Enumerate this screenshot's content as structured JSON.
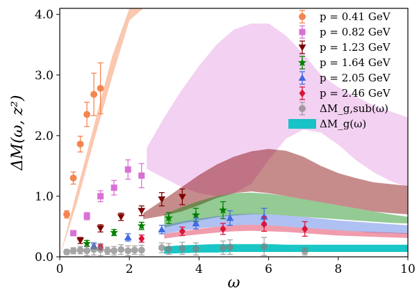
{
  "chart_data": {
    "type": "scatter",
    "xlabel": "ω",
    "ylabel": "ΔM(ω, z²)",
    "xlim": [
      0,
      10
    ],
    "ylim": [
      0,
      4.1
    ],
    "xticks": [
      "0",
      "2",
      "4",
      "6",
      "8",
      "10"
    ],
    "yticks": [
      "0.0",
      "1.0",
      "2.0",
      "3.0",
      "4.0"
    ],
    "legend_position": "top-right",
    "legend": [
      {
        "label": "p = 0.41 GeV",
        "marker": "circle",
        "color": "#f58450"
      },
      {
        "label": "p = 0.82 GeV",
        "marker": "square",
        "color": "#da70d6"
      },
      {
        "label": "p = 1.23 GeV",
        "marker": "triangle-down",
        "color": "#800000"
      },
      {
        "label": "p = 1.64 GeV",
        "marker": "star",
        "color": "#008000"
      },
      {
        "label": "p = 2.05 GeV",
        "marker": "triangle-up",
        "color": "#4169e1"
      },
      {
        "label": "p = 2.46 GeV",
        "marker": "diamond",
        "color": "#dc143c"
      },
      {
        "label": "ΔM_g,sub(ω)",
        "marker": "circle",
        "color": "#808080"
      },
      {
        "label": "ΔM_g(ω)",
        "marker": "band",
        "color": "#00c0c0"
      }
    ],
    "bands": [
      {
        "name": "p = 0.41 GeV",
        "color": "#f58450",
        "opacity": 0.45,
        "x": [
          0,
          0.5,
          1.0,
          1.5,
          2.0,
          2.4
        ],
        "lower": [
          0,
          0.9,
          1.95,
          2.95,
          3.9,
          4.1
        ],
        "upper": [
          0,
          1.1,
          2.2,
          3.3,
          4.1,
          4.1
        ]
      },
      {
        "name": "p = 0.82 GeV",
        "color": "#da70d6",
        "opacity": 0.32,
        "x": [
          2.5,
          3,
          3.5,
          4,
          4.5,
          5,
          5.5,
          6,
          6.5,
          7,
          7.5,
          8,
          8.5,
          9,
          9.5,
          10
        ],
        "lower": [
          1.45,
          1.3,
          1.15,
          1.05,
          1.0,
          1.05,
          1.2,
          1.6,
          1.95,
          2.1,
          2.05,
          1.85,
          1.6,
          1.4,
          1.25,
          1.15
        ],
        "upper": [
          1.8,
          2.3,
          2.75,
          3.15,
          3.5,
          3.75,
          3.85,
          3.85,
          3.65,
          3.35,
          3.0,
          2.8,
          2.65,
          2.5,
          2.4,
          2.3
        ]
      },
      {
        "name": "p = 1.23 GeV",
        "color": "#800000",
        "opacity": 0.45,
        "x": [
          2.4,
          3,
          3.5,
          4,
          4.5,
          5,
          5.5,
          6,
          6.5,
          7,
          7.5,
          8,
          8.5,
          9,
          9.5,
          10
        ],
        "lower": [
          0.62,
          0.68,
          0.75,
          0.85,
          0.97,
          1.05,
          1.08,
          1.05,
          1.0,
          0.95,
          0.9,
          0.85,
          0.8,
          0.75,
          0.72,
          0.7
        ],
        "upper": [
          0.72,
          0.95,
          1.15,
          1.35,
          1.52,
          1.65,
          1.74,
          1.78,
          1.75,
          1.65,
          1.5,
          1.38,
          1.3,
          1.23,
          1.2,
          1.17
        ]
      },
      {
        "name": "p = 1.64 GeV",
        "color": "#008000",
        "opacity": 0.42,
        "x": [
          3,
          3.5,
          4,
          4.5,
          5,
          5.5,
          6,
          6.5,
          7,
          7.5,
          8,
          8.5,
          9,
          9.5,
          10
        ],
        "lower": [
          0.48,
          0.55,
          0.6,
          0.65,
          0.68,
          0.7,
          0.7,
          0.68,
          0.66,
          0.64,
          0.62,
          0.6,
          0.58,
          0.56,
          0.55
        ],
        "upper": [
          0.7,
          0.82,
          0.92,
          1.0,
          1.05,
          1.06,
          1.04,
          1.0,
          0.95,
          0.9,
          0.85,
          0.8,
          0.75,
          0.7,
          0.66
        ]
      },
      {
        "name": "p = 2.05 GeV",
        "color": "#4169e1",
        "opacity": 0.42,
        "x": [
          3,
          3.5,
          4,
          4.5,
          5,
          5.5,
          6,
          6.5,
          7,
          7.5,
          8,
          8.5,
          9,
          9.5,
          10
        ],
        "lower": [
          0.38,
          0.43,
          0.47,
          0.5,
          0.52,
          0.53,
          0.52,
          0.5,
          0.48,
          0.46,
          0.44,
          0.42,
          0.4,
          0.39,
          0.38
        ],
        "upper": [
          0.52,
          0.58,
          0.63,
          0.67,
          0.7,
          0.71,
          0.7,
          0.68,
          0.66,
          0.63,
          0.6,
          0.58,
          0.56,
          0.54,
          0.52
        ]
      },
      {
        "name": "p = 2.46 GeV",
        "color": "#dc143c",
        "opacity": 0.42,
        "x": [
          3,
          3.5,
          4,
          4.5,
          5,
          5.5,
          6,
          6.5,
          7,
          7.5,
          8,
          8.5,
          9,
          9.5,
          10
        ],
        "lower": [
          0.3,
          0.34,
          0.37,
          0.4,
          0.42,
          0.43,
          0.42,
          0.41,
          0.39,
          0.37,
          0.35,
          0.34,
          0.33,
          0.32,
          0.31
        ],
        "upper": [
          0.38,
          0.42,
          0.46,
          0.5,
          0.52,
          0.53,
          0.52,
          0.5,
          0.48,
          0.46,
          0.44,
          0.42,
          0.41,
          0.4,
          0.39
        ]
      },
      {
        "name": "ΔM_g(ω)",
        "color": "#00c0c0",
        "opacity": 0.9,
        "x": [
          3,
          3.5,
          4,
          4.5,
          5,
          5.5,
          6,
          6.5,
          7,
          7.5,
          8,
          8.5,
          9,
          9.5,
          10
        ],
        "lower": [
          0.05,
          0.06,
          0.07,
          0.07,
          0.08,
          0.08,
          0.08,
          0.08,
          0.08,
          0.08,
          0.08,
          0.08,
          0.08,
          0.08,
          0.08
        ],
        "upper": [
          0.17,
          0.19,
          0.2,
          0.21,
          0.21,
          0.21,
          0.21,
          0.2,
          0.2,
          0.2,
          0.2,
          0.2,
          0.2,
          0.2,
          0.2
        ]
      }
    ],
    "series": [
      {
        "name": "p = 0.41 GeV",
        "marker": "circle",
        "color": "#f58450",
        "points": [
          [
            0.2,
            0.7,
            0.06
          ],
          [
            0.39,
            1.3,
            0.1
          ],
          [
            0.59,
            1.86,
            0.13
          ],
          [
            0.78,
            2.35,
            0.2
          ],
          [
            0.98,
            2.68,
            0.35
          ],
          [
            1.17,
            2.78,
            0.42
          ]
        ]
      },
      {
        "name": "p = 0.82 GeV",
        "marker": "square",
        "color": "#da70d6",
        "points": [
          [
            0.39,
            0.39,
            0.04
          ],
          [
            0.78,
            0.67,
            0.06
          ],
          [
            1.17,
            1.0,
            0.09
          ],
          [
            1.56,
            1.14,
            0.12
          ],
          [
            1.96,
            1.44,
            0.16
          ],
          [
            2.35,
            1.34,
            0.2
          ]
        ]
      },
      {
        "name": "p = 1.23 GeV",
        "marker": "triangle-down",
        "color": "#800000",
        "points": [
          [
            0.59,
            0.27,
            0.05
          ],
          [
            1.17,
            0.47,
            0.06
          ],
          [
            1.76,
            0.66,
            0.06
          ],
          [
            2.35,
            0.76,
            0.08
          ],
          [
            2.93,
            0.95,
            0.11
          ],
          [
            3.52,
            0.99,
            0.13
          ]
        ]
      },
      {
        "name": "p = 1.64 GeV",
        "marker": "star",
        "color": "#008000",
        "points": [
          [
            0.78,
            0.22,
            0.05
          ],
          [
            1.56,
            0.4,
            0.05
          ],
          [
            2.35,
            0.51,
            0.06
          ],
          [
            3.13,
            0.64,
            0.09
          ],
          [
            3.91,
            0.69,
            0.11
          ],
          [
            4.69,
            0.77,
            0.14
          ]
        ]
      },
      {
        "name": "p = 2.05 GeV",
        "marker": "triangle-up",
        "color": "#4169e1",
        "points": [
          [
            0.98,
            0.18,
            0.05
          ],
          [
            1.96,
            0.32,
            0.06
          ],
          [
            2.93,
            0.45,
            0.07
          ],
          [
            3.91,
            0.55,
            0.09
          ],
          [
            4.89,
            0.64,
            0.12
          ],
          [
            5.87,
            0.66,
            0.14
          ]
        ]
      },
      {
        "name": "p = 2.46 GeV",
        "marker": "diamond",
        "color": "#dc143c",
        "points": [
          [
            1.17,
            0.16,
            0.04
          ],
          [
            2.35,
            0.3,
            0.06
          ],
          [
            3.52,
            0.42,
            0.07
          ],
          [
            4.69,
            0.46,
            0.09
          ],
          [
            5.87,
            0.54,
            0.12
          ],
          [
            7.04,
            0.46,
            0.12
          ]
        ]
      },
      {
        "name": "ΔM_g,sub(ω)",
        "marker": "circle",
        "color": "#808080",
        "points": [
          [
            0.2,
            0.08,
            0.04
          ],
          [
            0.39,
            0.1,
            0.05
          ],
          [
            0.59,
            0.11,
            0.06
          ],
          [
            0.78,
            0.1,
            0.08
          ],
          [
            0.98,
            0.12,
            0.09
          ],
          [
            1.17,
            0.12,
            0.1
          ],
          [
            1.37,
            0.1,
            0.06
          ],
          [
            1.56,
            0.1,
            0.07
          ],
          [
            1.76,
            0.12,
            0.08
          ],
          [
            1.96,
            0.1,
            0.08
          ],
          [
            2.15,
            0.11,
            0.07
          ],
          [
            2.35,
            0.11,
            0.08
          ],
          [
            2.93,
            0.15,
            0.08
          ],
          [
            3.13,
            0.13,
            0.09
          ],
          [
            3.52,
            0.14,
            0.1
          ],
          [
            3.91,
            0.13,
            0.1
          ],
          [
            4.69,
            0.15,
            0.11
          ],
          [
            4.89,
            0.16,
            0.12
          ],
          [
            5.87,
            0.17,
            0.15
          ],
          [
            7.04,
            0.09,
            0.06
          ]
        ]
      }
    ]
  }
}
